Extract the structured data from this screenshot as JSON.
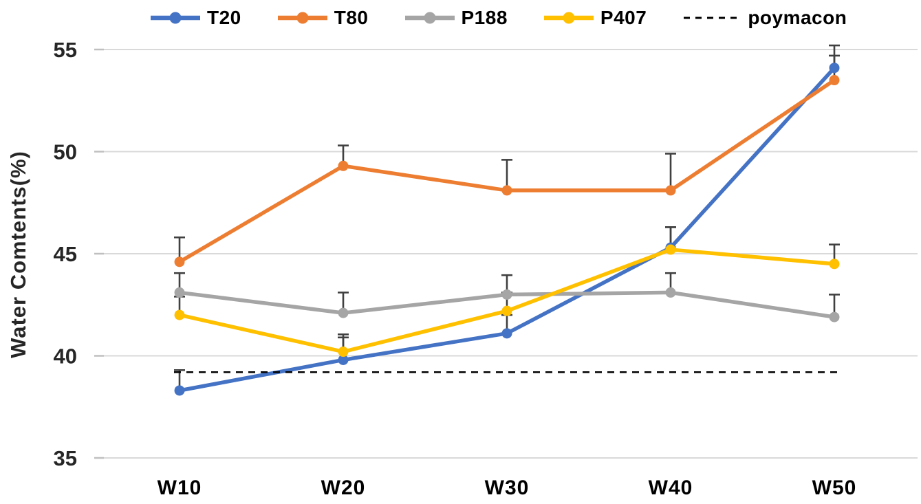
{
  "chart_data": {
    "type": "line",
    "title": "",
    "xlabel": "",
    "ylabel": "Water Comtents(%)",
    "ylim": [
      35,
      55
    ],
    "yticks": [
      35,
      40,
      45,
      50,
      55
    ],
    "categories": [
      "W10",
      "W20",
      "W30",
      "W40",
      "W50"
    ],
    "grid": "horizontal",
    "legend_position": "top",
    "series": [
      {
        "name": "T20",
        "color": "#4472C4",
        "values": [
          38.3,
          39.8,
          41.1,
          45.3,
          54.1
        ],
        "errors_up": [
          1.0,
          1.1,
          0.9,
          1.0,
          1.1
        ]
      },
      {
        "name": "T80",
        "color": "#ED7D31",
        "values": [
          44.6,
          49.3,
          48.1,
          48.1,
          53.5
        ],
        "errors_up": [
          1.2,
          1.0,
          1.5,
          1.8,
          1.2
        ]
      },
      {
        "name": "P188",
        "color": "#A5A5A5",
        "values": [
          43.1,
          42.1,
          43.0,
          43.1,
          41.9
        ],
        "errors_up": [
          0.95,
          1.0,
          0.95,
          0.95,
          1.1
        ]
      },
      {
        "name": "P407",
        "color": "#FFC000",
        "values": [
          42.0,
          40.2,
          42.2,
          45.2,
          44.5
        ],
        "errors_up": [
          0.9,
          0.85,
          0.9,
          1.1,
          0.95
        ]
      }
    ],
    "reference_line": {
      "name": "poymacon",
      "value": 39.2,
      "style": "dashed",
      "color": "#000000"
    }
  },
  "colors": {
    "gridline": "#D9D9D9",
    "axis_tick": "#BFBFBF",
    "error_bar": "#404040",
    "text": "#262626"
  }
}
